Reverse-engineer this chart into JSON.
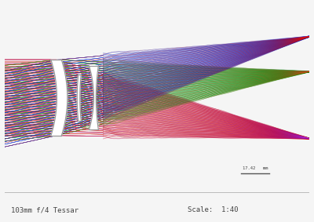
{
  "title": "103mm f/4 Tessar",
  "scale_text": "Scale:  1:40",
  "scale_label": "17.42   mm",
  "bg_color": "#f5f5f5",
  "plot_bg": "#ffffff",
  "bottom_bar_color": "#ebebeb",
  "text_color": "#444444",
  "border_color": "#bbbbbb",
  "figsize": [
    4.0,
    2.83
  ],
  "dpi": 100,
  "xlim": [
    0,
    130
  ],
  "ylim": [
    -32,
    32
  ],
  "lens1_x": 22,
  "lens1_hw": 13,
  "lens1_thick": 4.5,
  "lens2_x": 32,
  "lens2_hw": 8,
  "lens2_thick": 1.2,
  "lens3_x": 38,
  "lens3_hw": 11,
  "lens3_thick": 4.0,
  "x_start": 0,
  "x_src_end": 20,
  "x_after_lens": 42,
  "x_end": 130,
  "field_angles": [
    {
      "name": "upper",
      "y_exit": 20,
      "colors": [
        "#cc0000",
        "#cc1111",
        "#bb0000",
        "#dd1111",
        "#cc2222"
      ],
      "focal_y": 21
    },
    {
      "name": "mid",
      "y_exit": 8,
      "colors": [
        "#007700",
        "#008800",
        "#009900",
        "#006600",
        "#00aa00"
      ],
      "focal_y": 9
    },
    {
      "name": "lower",
      "y_exit": -14,
      "colors": [
        "#cc0000",
        "#dd1111",
        "#bb0000",
        "#ee2222",
        "#cc1111"
      ],
      "focal_y": -14
    }
  ]
}
